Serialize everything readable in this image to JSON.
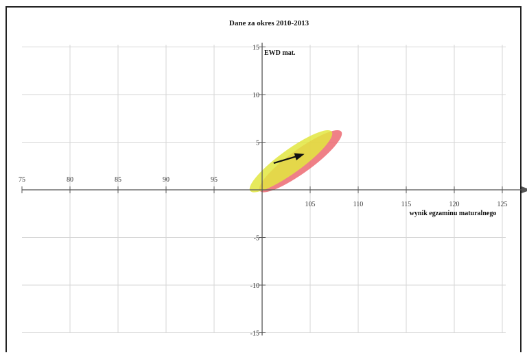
{
  "chart_data": {
    "type": "scatter",
    "title": "Dane za okres 2010-2013",
    "xlabel": "wynik egzaminu maturalnego",
    "ylabel": "EWD mat.",
    "xlim": [
      75,
      127
    ],
    "ylim": [
      -15,
      15
    ],
    "x_ticks": [
      75,
      80,
      85,
      90,
      95,
      105,
      110,
      115,
      120,
      125
    ],
    "y_ticks": [
      15,
      10,
      5,
      -5,
      -10,
      -15
    ],
    "grid": true,
    "ellipses": [
      {
        "cx": 104,
        "cy": 3,
        "rx": 4.2,
        "ry": 1.2,
        "angle_deg": 36,
        "color": "#ec6a72"
      },
      {
        "cx": 103,
        "cy": 3,
        "rx": 4.2,
        "ry": 1.2,
        "angle_deg": 36,
        "color": "#e2e63f"
      }
    ],
    "arrow": {
      "from": [
        101.2,
        2.8
      ],
      "to": [
        104.2,
        3.7
      ],
      "color": "#111111"
    }
  }
}
